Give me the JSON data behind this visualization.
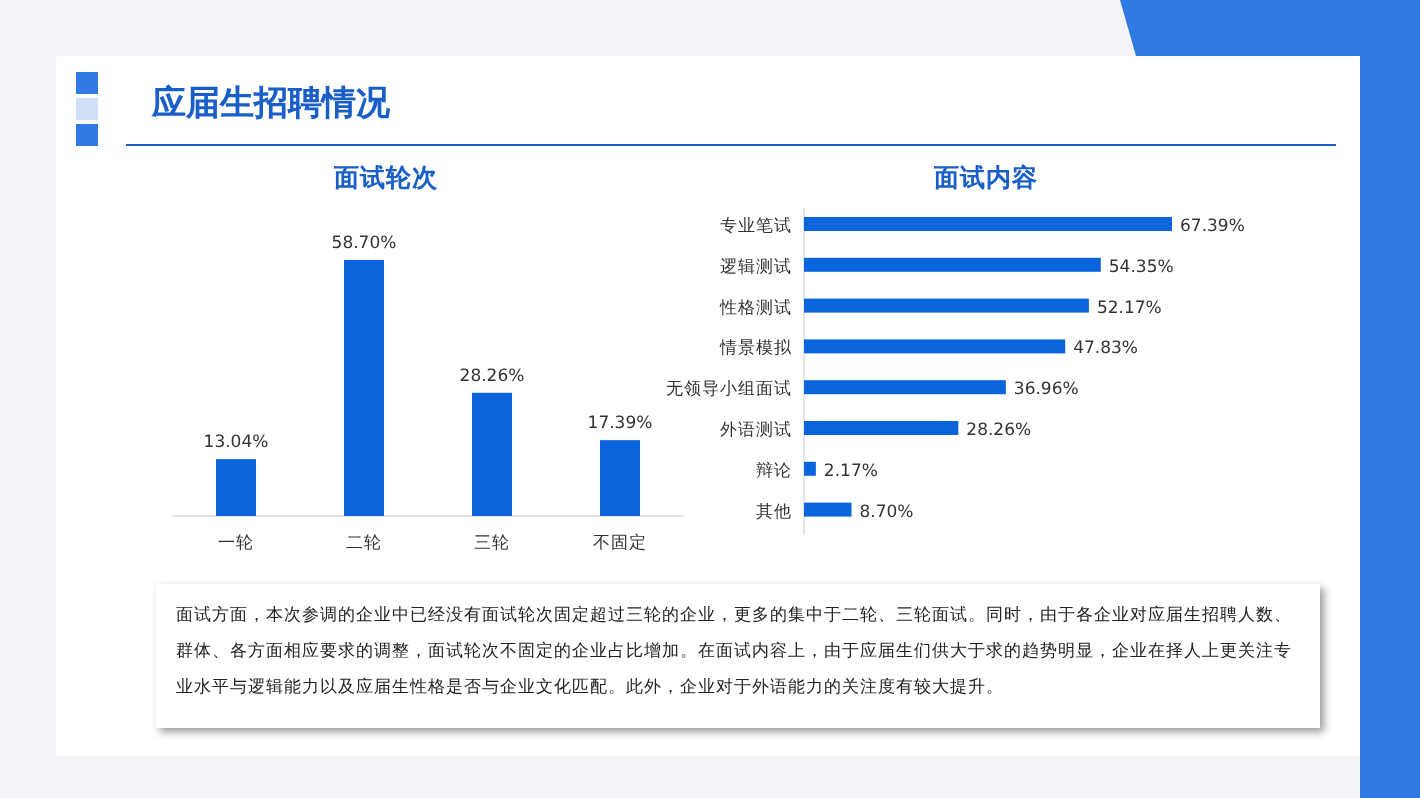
{
  "chart_data": [
    {
      "type": "other",
      "title": "应届生招聘情况",
      "annotations": [
        "面试方面，本次参调的企业中已经没有面试轮次固定超过三轮的企业，更多的集中于二轮、三轮面试。同时，由于各企业对应届生招聘人数、群体、各方面相应要求的调整，面试轮次不固定的企业占比增加。在面试内容上，由于应届生们供大于求的趋势明显，企业在择人上更关注专业水平与逻辑能力以及应届生性格是否与企业文化匹配。此外，企业对于外语能力的关注度有较大提升。"
      ]
    },
    {
      "type": "bar",
      "title": "面试轮次",
      "categories": [
        "一轮",
        "二轮",
        "三轮",
        "不固定"
      ],
      "color": "#0a64dc",
      "values": [
        13.04,
        58.7,
        28.26,
        17.39
      ],
      "value_labels": [
        "13.04%",
        "58.70%",
        "28.26%",
        "17.39%"
      ]
    },
    {
      "type": "bar",
      "orientation": "horizontal",
      "title": "面试内容",
      "categories": [
        "专业笔试",
        "逻辑测试",
        "性格测试",
        "情景模拟",
        "无领导小组面试",
        "外语测试",
        "辩论",
        "其他"
      ],
      "color": "#0a64dc",
      "values": [
        67.39,
        54.35,
        52.17,
        47.83,
        36.96,
        28.26,
        2.17,
        8.7
      ],
      "value_labels": [
        "67.39%",
        "54.35%",
        "52.17%",
        "47.83%",
        "36.96%",
        "28.26%",
        "2.17%",
        "8.70%"
      ]
    }
  ]
}
